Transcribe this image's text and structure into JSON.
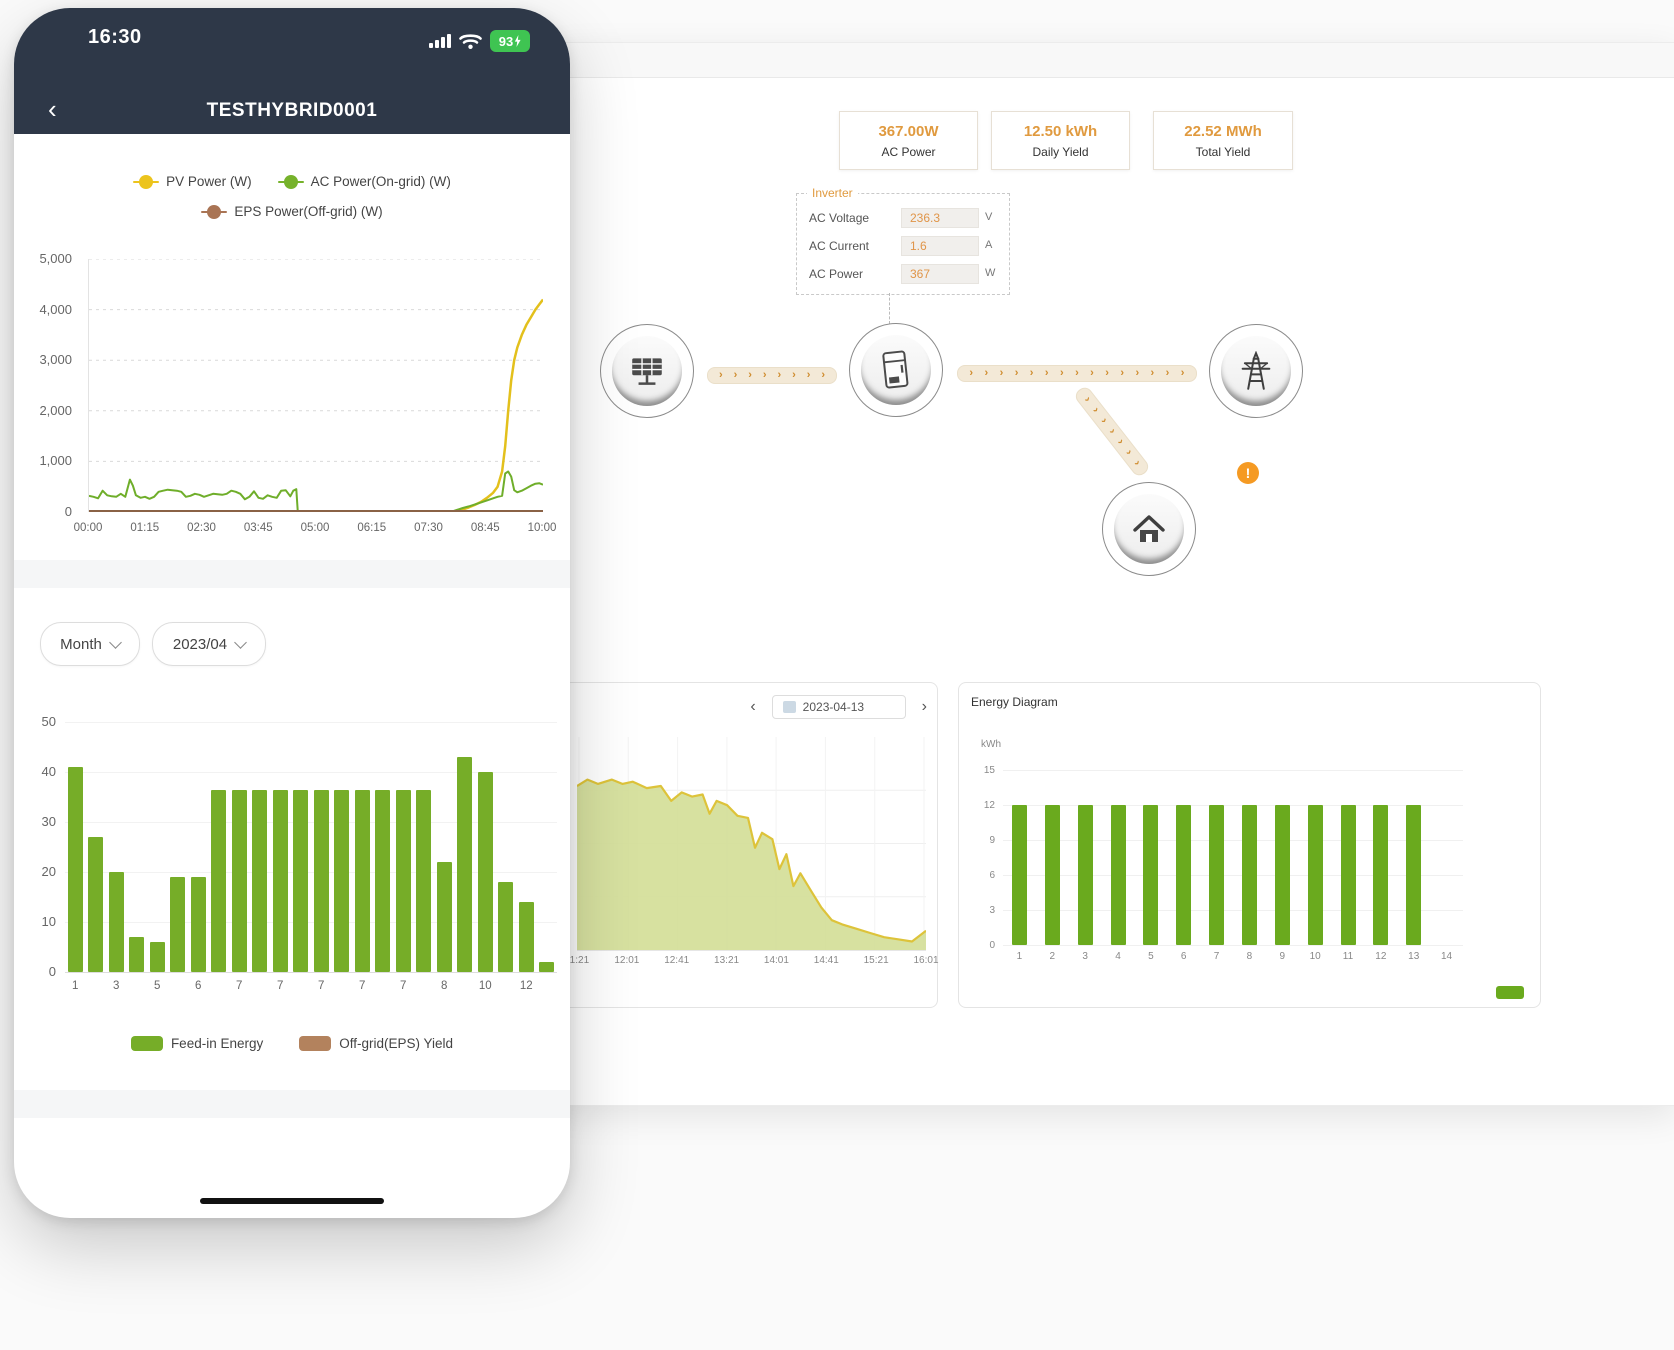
{
  "icons": {
    "back": "‹",
    "prev": "‹",
    "next": "›",
    "flow_arrow": "›",
    "warning": "!"
  },
  "phone": {
    "status_bar": {
      "time": "16:30",
      "battery_percent": "93"
    },
    "header": {
      "title": "TESTHYBRID0001"
    },
    "power_chart": {
      "legend": [
        {
          "label": "PV Power (W)",
          "color": "#ecc41d"
        },
        {
          "label": "AC Power(On-grid) (W)",
          "color": "#76b22b"
        },
        {
          "label": "EPS Power(Off-grid) (W)",
          "color": "#a97454"
        }
      ]
    },
    "filters": {
      "period": "Month",
      "date": "2023/04"
    },
    "month_chart": {
      "legend": [
        {
          "label": "Feed-in Energy",
          "color": "#76ad28"
        },
        {
          "label": "Off-grid(EPS) Yield",
          "color": "#b3825d"
        }
      ]
    }
  },
  "desktop": {
    "stat_cards": [
      {
        "value": "367.00W",
        "label": "AC Power"
      },
      {
        "value": "12.50 kWh",
        "label": "Daily Yield"
      },
      {
        "value": "22.52 MWh",
        "label": "Total Yield"
      }
    ],
    "inverter_panel": {
      "title": "Inverter",
      "rows": [
        {
          "label": "AC Voltage",
          "value": "236.3",
          "unit": "V"
        },
        {
          "label": "AC Current",
          "value": "1.6",
          "unit": "A"
        },
        {
          "label": "AC Power",
          "value": "367",
          "unit": "W"
        }
      ]
    },
    "day_panel": {
      "date": "2023-04-13"
    },
    "energy_panel": {
      "title": "Energy Diagram",
      "unit": "kWh"
    }
  },
  "chart_data": [
    {
      "id": "phone-power-line",
      "type": "line",
      "ylim": [
        0,
        5000
      ],
      "x_domain_minutes": [
        0,
        600
      ],
      "y_ticks": [
        {
          "value": 5000,
          "label": "5,000"
        },
        {
          "value": 4000,
          "label": "4,000"
        },
        {
          "value": 3000,
          "label": "3,000"
        },
        {
          "value": 2000,
          "label": "2,000"
        },
        {
          "value": 1000,
          "label": "1,000"
        },
        {
          "value": 0,
          "label": "0"
        }
      ],
      "x_ticks": [
        "00:00",
        "01:15",
        "02:30",
        "03:45",
        "05:00",
        "06:15",
        "07:30",
        "08:45",
        "10:00"
      ],
      "series": [
        {
          "name": "PV Power (W)",
          "color": "#e3c01c",
          "width": 2.5,
          "points": [
            [
              0,
              2
            ],
            [
              478,
              2
            ],
            [
              486,
              20
            ],
            [
              494,
              50
            ],
            [
              502,
              90
            ],
            [
              510,
              140
            ],
            [
              518,
              200
            ],
            [
              526,
              280
            ],
            [
              534,
              380
            ],
            [
              540,
              500
            ],
            [
              546,
              800
            ],
            [
              550,
              1300
            ],
            [
              554,
              2000
            ],
            [
              558,
              2600
            ],
            [
              562,
              3000
            ],
            [
              566,
              3250
            ],
            [
              572,
              3500
            ],
            [
              578,
              3700
            ],
            [
              584,
              3850
            ],
            [
              590,
              4000
            ],
            [
              595,
              4100
            ],
            [
              600,
              4200
            ]
          ]
        },
        {
          "name": "AC Power(On-grid) (W)",
          "color": "#6fae2a",
          "width": 2,
          "points": [
            [
              0,
              320
            ],
            [
              6,
              300
            ],
            [
              12,
              270
            ],
            [
              18,
              420
            ],
            [
              24,
              330
            ],
            [
              30,
              310
            ],
            [
              36,
              300
            ],
            [
              42,
              360
            ],
            [
              48,
              300
            ],
            [
              54,
              640
            ],
            [
              58,
              520
            ],
            [
              62,
              330
            ],
            [
              68,
              280
            ],
            [
              74,
              300
            ],
            [
              80,
              260
            ],
            [
              86,
              300
            ],
            [
              92,
              400
            ],
            [
              98,
              420
            ],
            [
              104,
              440
            ],
            [
              110,
              430
            ],
            [
              116,
              420
            ],
            [
              122,
              400
            ],
            [
              128,
              300
            ],
            [
              134,
              320
            ],
            [
              140,
              360
            ],
            [
              146,
              340
            ],
            [
              152,
              300
            ],
            [
              158,
              330
            ],
            [
              164,
              360
            ],
            [
              170,
              350
            ],
            [
              176,
              340
            ],
            [
              182,
              360
            ],
            [
              188,
              420
            ],
            [
              194,
              400
            ],
            [
              200,
              360
            ],
            [
              206,
              250
            ],
            [
              212,
              300
            ],
            [
              218,
              410
            ],
            [
              224,
              280
            ],
            [
              230,
              260
            ],
            [
              236,
              330
            ],
            [
              242,
              300
            ],
            [
              248,
              280
            ],
            [
              254,
              420
            ],
            [
              260,
              430
            ],
            [
              266,
              310
            ],
            [
              270,
              420
            ],
            [
              274,
              450
            ],
            [
              276,
              0
            ],
            [
              478,
              0
            ],
            [
              486,
              40
            ],
            [
              494,
              80
            ],
            [
              502,
              110
            ],
            [
              510,
              150
            ],
            [
              518,
              190
            ],
            [
              526,
              230
            ],
            [
              534,
              270
            ],
            [
              540,
              300
            ],
            [
              546,
              320
            ],
            [
              550,
              760
            ],
            [
              554,
              800
            ],
            [
              558,
              700
            ],
            [
              562,
              430
            ],
            [
              566,
              390
            ],
            [
              572,
              420
            ],
            [
              578,
              470
            ],
            [
              584,
              520
            ],
            [
              590,
              560
            ],
            [
              595,
              570
            ],
            [
              600,
              540
            ]
          ]
        },
        {
          "name": "EPS Power(Off-grid) (W)",
          "color": "#8a6246",
          "width": 3.5,
          "points": [
            [
              0,
              4
            ],
            [
              600,
              4
            ]
          ]
        }
      ]
    },
    {
      "id": "phone-month-bar",
      "type": "bar",
      "color": "#76ad28",
      "ylim": [
        0,
        50
      ],
      "y_ticks": [
        50,
        40,
        30,
        20,
        10,
        0
      ],
      "values": [
        41,
        27,
        20,
        7,
        6,
        19,
        19,
        36.5,
        36.5,
        36.5,
        36.5,
        36.5,
        36.5,
        36.5,
        36.5,
        36.5,
        36.5,
        36.5,
        22,
        43,
        40,
        18,
        14,
        2
      ],
      "x_tick_labels": [
        "1",
        "3",
        "5",
        "6",
        "7",
        "7",
        "7",
        "7",
        "7",
        "8",
        "10",
        "12"
      ],
      "x_tick_every": 2
    },
    {
      "id": "desktop-day-area",
      "type": "area",
      "stroke": "#ddc33a",
      "fill": "#d3de96",
      "x_ticks": [
        "11:21",
        "12:01",
        "12:41",
        "13:21",
        "14:01",
        "14:41",
        "15:21",
        "16:01"
      ],
      "points_norm": [
        [
          0,
          0.77
        ],
        [
          0.03,
          0.8
        ],
        [
          0.06,
          0.78
        ],
        [
          0.1,
          0.8
        ],
        [
          0.13,
          0.78
        ],
        [
          0.16,
          0.79
        ],
        [
          0.2,
          0.76
        ],
        [
          0.24,
          0.77
        ],
        [
          0.27,
          0.7
        ],
        [
          0.3,
          0.74
        ],
        [
          0.33,
          0.72
        ],
        [
          0.36,
          0.73
        ],
        [
          0.38,
          0.64
        ],
        [
          0.4,
          0.7
        ],
        [
          0.43,
          0.68
        ],
        [
          0.46,
          0.63
        ],
        [
          0.49,
          0.62
        ],
        [
          0.51,
          0.48
        ],
        [
          0.53,
          0.55
        ],
        [
          0.56,
          0.52
        ],
        [
          0.58,
          0.38
        ],
        [
          0.6,
          0.45
        ],
        [
          0.62,
          0.3
        ],
        [
          0.64,
          0.36
        ],
        [
          0.67,
          0.28
        ],
        [
          0.7,
          0.2
        ],
        [
          0.73,
          0.14
        ],
        [
          0.76,
          0.12
        ],
        [
          0.8,
          0.1
        ],
        [
          0.84,
          0.08
        ],
        [
          0.88,
          0.06
        ],
        [
          0.92,
          0.05
        ],
        [
          0.96,
          0.04
        ],
        [
          1,
          0.09
        ]
      ]
    },
    {
      "id": "desktop-energy-bar",
      "type": "bar",
      "color": "#6aaa1e",
      "ylim": [
        0,
        15
      ],
      "y_ticks": [
        15,
        12,
        9,
        6,
        3,
        0
      ],
      "categories": [
        "1",
        "2",
        "3",
        "4",
        "5",
        "6",
        "7",
        "8",
        "9",
        "10",
        "11",
        "12",
        "13",
        "14"
      ],
      "values": [
        12,
        12,
        12,
        12,
        12,
        12,
        12,
        12,
        12,
        12,
        12,
        12,
        12,
        0
      ]
    }
  ]
}
